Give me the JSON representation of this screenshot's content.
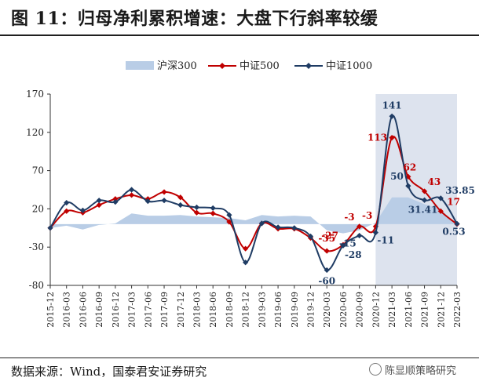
{
  "page": {
    "title": "图 11：归母净利累积增速：大盘下行斜率较缓",
    "source": "数据来源：Wind，国泰君安证券研究",
    "watermark": "陈显顺策略研究"
  },
  "chart_data": {
    "type": "line",
    "title": "",
    "xlabel": "",
    "ylabel": "",
    "ylim": [
      -80,
      170
    ],
    "yticks": [
      -80,
      -30,
      20,
      70,
      120,
      170
    ],
    "legend_position": "top",
    "grid": false,
    "categories": [
      "2015-12",
      "2016-03",
      "2016-06",
      "2016-09",
      "2016-12",
      "2017-03",
      "2017-06",
      "2017-09",
      "2017-12",
      "2018-03",
      "2018-06",
      "2018-09",
      "2018-12",
      "2019-03",
      "2019-06",
      "2019-09",
      "2019-12",
      "2020-03",
      "2020-06",
      "2020-09",
      "2020-12",
      "2021-03",
      "2021-06",
      "2021-09",
      "2021-12",
      "2022-03"
    ],
    "highlight_range": [
      "2020-12",
      "2022-03"
    ],
    "highlight_color": "#dde3ee",
    "series": [
      {
        "name": "沪深300",
        "kind": "area",
        "color": "#b9cde6",
        "values": [
          -5,
          -2,
          -7,
          -1,
          1,
          14,
          11,
          11,
          12,
          10,
          9,
          8,
          5,
          12,
          10,
          11,
          10,
          -8,
          -12,
          -8,
          2,
          35,
          35,
          26,
          20,
          -3
        ]
      },
      {
        "name": "中证500",
        "kind": "line",
        "marker": "diamond",
        "color": "#c00000",
        "values": [
          -5,
          17,
          15,
          25,
          33,
          38,
          33,
          42,
          35,
          15,
          14,
          3,
          -32,
          1,
          -6,
          -6,
          -18,
          -35,
          -27,
          -3,
          -3,
          113,
          62,
          43,
          17,
          0
        ],
        "labels": [
          {
            "index": 17,
            "text": "-35"
          },
          {
            "index": 18,
            "text": "-27"
          },
          {
            "index": 19,
            "text": "-3"
          },
          {
            "index": 20,
            "text": "-3"
          },
          {
            "index": 21,
            "text": "113"
          },
          {
            "index": 22,
            "text": "62"
          },
          {
            "index": 23,
            "text": "43"
          },
          {
            "index": 24,
            "text": "17"
          }
        ]
      },
      {
        "name": "中证1000",
        "kind": "line",
        "marker": "diamond",
        "color": "#1f3c64",
        "values": [
          -5,
          28,
          18,
          31,
          29,
          45,
          30,
          31,
          25,
          22,
          21,
          12,
          -50,
          1,
          -4,
          -5,
          -16,
          -60,
          -28,
          -15,
          -11,
          141,
          50,
          31.41,
          33.85,
          0.53
        ],
        "labels": [
          {
            "index": 17,
            "text": "-60"
          },
          {
            "index": 18,
            "text": "-28"
          },
          {
            "index": 19,
            "text": "-15"
          },
          {
            "index": 20,
            "text": "-11"
          },
          {
            "index": 21,
            "text": "141"
          },
          {
            "index": 22,
            "text": "50"
          },
          {
            "index": 23,
            "text": "31.41"
          },
          {
            "index": 24,
            "text": "33.85"
          },
          {
            "index": 25,
            "text": "0.53"
          }
        ]
      }
    ]
  }
}
